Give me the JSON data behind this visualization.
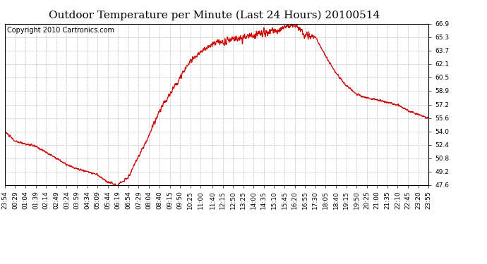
{
  "title": "Outdoor Temperature per Minute (Last 24 Hours) 20100514",
  "copyright": "Copyright 2010 Cartronics.com",
  "line_color": "#cc0000",
  "background_color": "#ffffff",
  "grid_color": "#bbbbbb",
  "border_color": "#000000",
  "yticks": [
    47.6,
    49.2,
    50.8,
    52.4,
    54.0,
    55.6,
    57.2,
    58.9,
    60.5,
    62.1,
    63.7,
    65.3,
    66.9
  ],
  "xtick_labels": [
    "23:54",
    "00:29",
    "01:04",
    "01:39",
    "02:14",
    "02:49",
    "03:24",
    "03:59",
    "04:34",
    "05:09",
    "05:44",
    "06:19",
    "06:54",
    "07:29",
    "08:04",
    "08:40",
    "09:15",
    "09:50",
    "10:25",
    "11:00",
    "11:40",
    "12:15",
    "12:50",
    "13:25",
    "14:00",
    "14:35",
    "15:10",
    "15:45",
    "16:20",
    "16:55",
    "17:30",
    "18:05",
    "18:40",
    "19:15",
    "19:50",
    "20:25",
    "21:00",
    "21:35",
    "22:10",
    "22:45",
    "23:20",
    "23:55"
  ],
  "key_points_x": [
    0,
    35,
    70,
    105,
    140,
    175,
    210,
    245,
    280,
    315,
    350,
    385,
    420,
    455,
    490,
    526,
    561,
    596,
    631,
    666,
    706,
    741,
    776,
    811,
    846,
    881,
    916,
    951,
    986,
    1021,
    1056,
    1091,
    1126,
    1161,
    1196,
    1231,
    1266,
    1301,
    1336,
    1371,
    1406,
    1441
  ],
  "key_points_y": [
    54.0,
    52.8,
    52.5,
    52.2,
    51.5,
    50.8,
    50.0,
    49.5,
    49.2,
    48.8,
    47.9,
    47.6,
    48.5,
    51.0,
    53.5,
    56.5,
    58.5,
    60.5,
    62.5,
    63.5,
    64.5,
    64.8,
    65.0,
    65.2,
    65.5,
    65.8,
    66.0,
    66.5,
    66.9,
    65.5,
    65.3,
    63.0,
    61.0,
    59.5,
    58.5,
    58.0,
    57.8,
    57.5,
    57.2,
    56.5,
    56.0,
    55.6
  ],
  "title_fontsize": 11,
  "tick_fontsize": 6.5,
  "copyright_fontsize": 7
}
